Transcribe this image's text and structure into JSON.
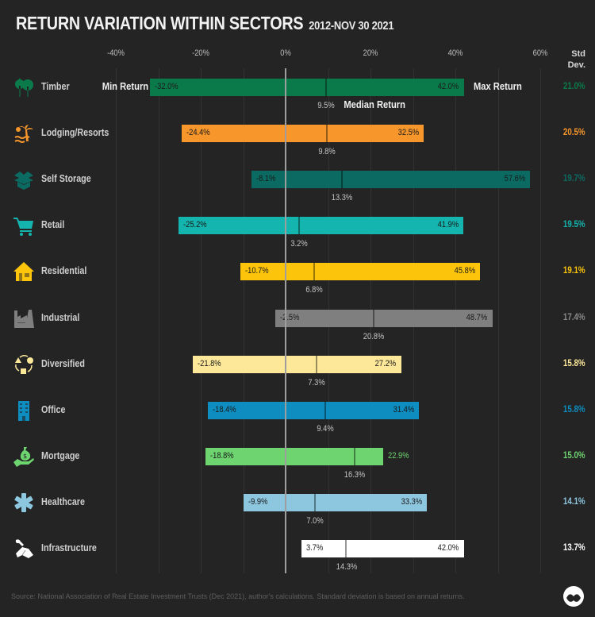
{
  "header": {
    "title": "RETURN VARIATION WITHIN SECTORS",
    "subtitle": "2012-NOV 30 2021",
    "std_header_line1": "Std",
    "std_header_line2": "Dev."
  },
  "annotations": {
    "min_label": "Min Return",
    "max_label": "Max Return",
    "median_label": "Median Return"
  },
  "footer": {
    "source": "Source: National Association of Real Estate Investment Trusts (Dec 2021), author's calculations. Standard deviation is based on annual returns."
  },
  "chart_data": {
    "type": "range-bar",
    "title": "RETURN VARIATION WITHIN SECTORS",
    "subtitle": "2012-NOV 30 2021",
    "xlabel": "Return",
    "xlim": [
      -40,
      60
    ],
    "x_ticks": [
      "-40%",
      "-20%",
      "0%",
      "20%",
      "40%",
      "60%"
    ],
    "grid": true,
    "legend": [
      "Min Return",
      "Median Return",
      "Max Return",
      "Std Dev."
    ],
    "categories": [
      "Timber",
      "Lodging/Resorts",
      "Self Storage",
      "Retail",
      "Residential",
      "Industrial",
      "Diversified",
      "Office",
      "Mortgage",
      "Healthcare",
      "Infrastructure"
    ],
    "series": [
      {
        "name": "Min Return",
        "values": [
          -32.0,
          -24.4,
          -8.1,
          -25.2,
          -10.7,
          -2.5,
          -21.8,
          -18.4,
          -18.8,
          -9.9,
          3.7
        ]
      },
      {
        "name": "Median Return",
        "values": [
          9.5,
          9.8,
          13.3,
          3.2,
          6.8,
          20.8,
          7.3,
          9.4,
          16.3,
          7.0,
          14.3
        ]
      },
      {
        "name": "Max Return",
        "values": [
          42.0,
          32.5,
          57.6,
          41.9,
          45.8,
          48.7,
          27.2,
          31.4,
          22.9,
          33.3,
          42.0
        ]
      },
      {
        "name": "Std Dev.",
        "values": [
          21.0,
          20.5,
          19.7,
          19.5,
          19.1,
          17.4,
          15.8,
          15.8,
          15.0,
          14.1,
          13.7
        ]
      }
    ],
    "colors": [
      "#0b7a4b",
      "#f7962b",
      "#0b6b63",
      "#14b5ae",
      "#fcc40a",
      "#7f7f7f",
      "#fde89a",
      "#0e8dc0",
      "#6ed46f",
      "#8cc6df",
      "#ffffff"
    ]
  },
  "sectors": [
    {
      "name": "Timber",
      "icon": "trees-icon",
      "min": -32.0,
      "median": 9.5,
      "max": 42.0,
      "min_label": "-32.0%",
      "median_label": "9.5%",
      "max_label": "42.0%",
      "std": "21.0%",
      "color": "#0b7a4b",
      "std_color": "#0b7a4b"
    },
    {
      "name": "Lodging/Resorts",
      "icon": "palm-beach-icon",
      "min": -24.4,
      "median": 9.8,
      "max": 32.5,
      "min_label": "-24.4%",
      "median_label": "9.8%",
      "max_label": "32.5%",
      "std": "20.5%",
      "color": "#f7962b",
      "std_color": "#f7962b"
    },
    {
      "name": "Self Storage",
      "icon": "storage-box-icon",
      "min": -8.1,
      "median": 13.3,
      "max": 57.6,
      "min_label": "-8.1%",
      "median_label": "13.3%",
      "max_label": "57.6%",
      "std": "19.7%",
      "color": "#0b6b63",
      "std_color": "#0b6b63"
    },
    {
      "name": "Retail",
      "icon": "shopping-cart-icon",
      "min": -25.2,
      "median": 3.2,
      "max": 41.9,
      "min_label": "-25.2%",
      "median_label": "3.2%",
      "max_label": "41.9%",
      "std": "19.5%",
      "color": "#14b5ae",
      "std_color": "#14b5ae"
    },
    {
      "name": "Residential",
      "icon": "house-icon",
      "min": -10.7,
      "median": 6.8,
      "max": 45.8,
      "min_label": "-10.7%",
      "median_label": "6.8%",
      "max_label": "45.8%",
      "std": "19.1%",
      "color": "#fcc40a",
      "std_color": "#fcc40a"
    },
    {
      "name": "Industrial",
      "icon": "factory-icon",
      "min": -2.5,
      "median": 20.8,
      "max": 48.7,
      "min_label": "-2.5%",
      "median_label": "20.8%",
      "max_label": "48.7%",
      "std": "17.4%",
      "color": "#7f7f7f",
      "std_color": "#8a8a8a"
    },
    {
      "name": "Diversified",
      "icon": "shapes-cycle-icon",
      "min": -21.8,
      "median": 7.3,
      "max": 27.2,
      "min_label": "-21.8%",
      "median_label": "7.3%",
      "max_label": "27.2%",
      "std": "15.8%",
      "color": "#fde89a",
      "std_color": "#fde89a"
    },
    {
      "name": "Office",
      "icon": "office-building-icon",
      "min": -18.4,
      "median": 9.4,
      "max": 31.4,
      "min_label": "-18.4%",
      "median_label": "9.4%",
      "max_label": "31.4%",
      "std": "15.8%",
      "color": "#0e8dc0",
      "std_color": "#0e8dc0"
    },
    {
      "name": "Mortgage",
      "icon": "money-bag-hand-icon",
      "min": -18.8,
      "median": 16.3,
      "max": 22.9,
      "min_label": "-18.8%",
      "median_label": "16.3%",
      "max_label": "22.9%",
      "std": "15.0%",
      "color": "#6ed46f",
      "std_color": "#6ed46f",
      "max_outside": true
    },
    {
      "name": "Healthcare",
      "icon": "medical-asterisk-icon",
      "min": -9.9,
      "median": 7.0,
      "max": 33.3,
      "min_label": "-9.9%",
      "median_label": "7.0%",
      "max_label": "33.3%",
      "std": "14.1%",
      "color": "#8cc6df",
      "std_color": "#8cc6df"
    },
    {
      "name": "Infrastructure",
      "icon": "wrench-hand-icon",
      "min": 3.7,
      "median": 14.3,
      "max": 42.0,
      "min_label": "3.7%",
      "median_label": "14.3%",
      "max_label": "42.0%",
      "std": "13.7%",
      "color": "#ffffff",
      "std_color": "#ffffff"
    }
  ]
}
